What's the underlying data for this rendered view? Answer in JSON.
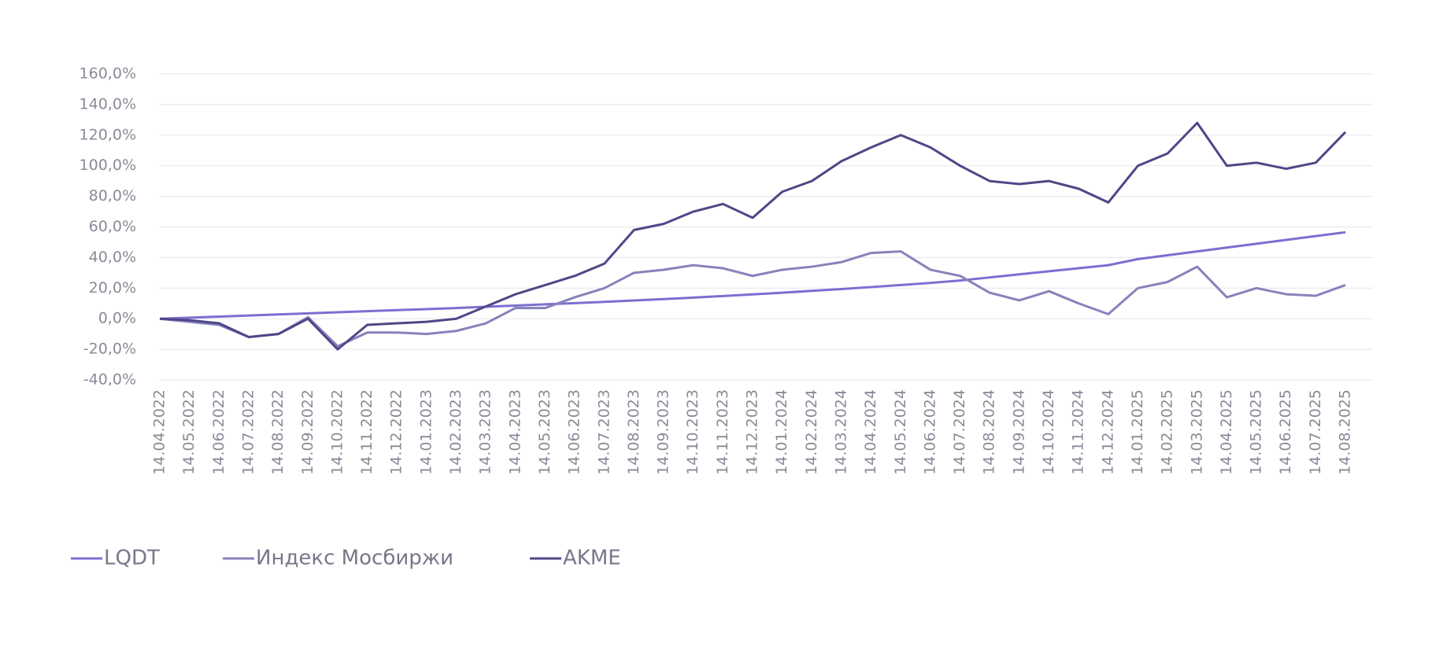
{
  "chart_data": {
    "type": "line",
    "categories": [
      "14.04.2022",
      "14.05.2022",
      "14.06.2022",
      "14.07.2022",
      "14.08.2022",
      "14.09.2022",
      "14.10.2022",
      "14.11.2022",
      "14.12.2022",
      "14.01.2023",
      "14.02.2023",
      "14.03.2023",
      "14.04.2023",
      "14.05.2023",
      "14.06.2023",
      "14.07.2023",
      "14.08.2023",
      "14.09.2023",
      "14.10.2023",
      "14.11.2023",
      "14.12.2023",
      "14.01.2024",
      "14.02.2024",
      "14.03.2024",
      "14.04.2024",
      "14.05.2024",
      "14.06.2024",
      "14.07.2024",
      "14.08.2024",
      "14.09.2024",
      "14.10.2024",
      "14.11.2024",
      "14.12.2024",
      "14.01.2025",
      "14.02.2025",
      "14.03.2025",
      "14.04.2025",
      "14.05.2025",
      "14.06.2025",
      "14.07.2025",
      "14.08.2025"
    ],
    "series": [
      {
        "name": "LQDT",
        "color": "#7b6fd0",
        "values": [
          0,
          0.7,
          1.4,
          2.1,
          2.8,
          3.5,
          4.2,
          4.9,
          5.6,
          6.3,
          7,
          7.8,
          8.6,
          9.4,
          10.2,
          11,
          11.9,
          12.8,
          13.8,
          14.8,
          15.9,
          17,
          18.2,
          19.4,
          20.7,
          22,
          23.4,
          25,
          27,
          29,
          31,
          33,
          35,
          39,
          41.5,
          44,
          46.5,
          49,
          51.5,
          54,
          56.5
        ]
      },
      {
        "name": "Индекс Мосбиржи",
        "color": "#8683bb",
        "values": [
          0,
          -2,
          -4,
          -12,
          -10,
          1,
          -18,
          -9,
          -9,
          -10,
          -8,
          -3,
          7,
          7,
          14,
          20,
          30,
          32,
          35,
          33,
          28,
          32,
          34,
          37,
          43,
          44,
          32,
          28,
          17,
          12,
          18,
          10,
          3,
          20,
          24,
          34,
          14,
          20,
          16,
          15,
          22
        ]
      },
      {
        "name": "AKME",
        "color": "#4e4787",
        "values": [
          0,
          -1,
          -3,
          -12,
          -10,
          0,
          -20,
          -4,
          -3,
          -2,
          0,
          8,
          16,
          22,
          28,
          36,
          58,
          62,
          70,
          75,
          66,
          83,
          90,
          103,
          112,
          120,
          112,
          100,
          90,
          88,
          90,
          85,
          76,
          100,
          108,
          128,
          100,
          102,
          98,
          102,
          122
        ]
      }
    ],
    "ylim": [
      -40,
      160
    ],
    "yticks": [
      {
        "value": -40,
        "label": "-40,0%"
      },
      {
        "value": -20,
        "label": "-20,0%"
      },
      {
        "value": 0,
        "label": "0,0%"
      },
      {
        "value": 20,
        "label": "20,0%"
      },
      {
        "value": 40,
        "label": "40,0%"
      },
      {
        "value": 60,
        "label": "60,0%"
      },
      {
        "value": 80,
        "label": "80,0%"
      },
      {
        "value": 100,
        "label": "100,0%"
      },
      {
        "value": 120,
        "label": "120,0%"
      },
      {
        "value": 140,
        "label": "140,0%"
      },
      {
        "value": 160,
        "label": "160,0%"
      }
    ],
    "grid": true,
    "legend": "bottom-left"
  }
}
